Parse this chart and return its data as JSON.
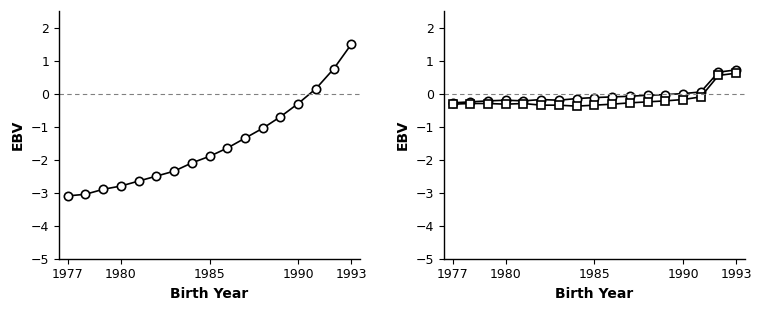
{
  "years": [
    1977,
    1978,
    1979,
    1980,
    1981,
    1982,
    1983,
    1984,
    1985,
    1986,
    1987,
    1988,
    1989,
    1990,
    1991,
    1992,
    1993
  ],
  "stature": [
    -3.1,
    -3.05,
    -2.9,
    -2.8,
    -2.65,
    -2.5,
    -2.35,
    -2.1,
    -1.9,
    -1.65,
    -1.35,
    -1.05,
    -0.7,
    -0.3,
    0.15,
    0.75,
    1.5
  ],
  "dairy_form": [
    -0.28,
    -0.25,
    -0.22,
    -0.2,
    -0.22,
    -0.18,
    -0.2,
    -0.15,
    -0.12,
    -0.1,
    -0.08,
    -0.05,
    -0.03,
    0.0,
    0.05,
    0.65,
    0.72
  ],
  "body_depth": [
    -0.32,
    -0.3,
    -0.3,
    -0.32,
    -0.3,
    -0.35,
    -0.35,
    -0.38,
    -0.35,
    -0.32,
    -0.28,
    -0.25,
    -0.22,
    -0.18,
    -0.1,
    0.55,
    0.62
  ],
  "ylim": [
    -5,
    2.5
  ],
  "yticks": [
    -5,
    -4,
    -3,
    -2,
    -1,
    0,
    1,
    2
  ],
  "xlim": [
    1976.5,
    1993.5
  ],
  "xticks": [
    1977,
    1980,
    1985,
    1990,
    1993
  ],
  "xlabel": "Birth Year",
  "ylabel": "EBV",
  "hline_y": 0,
  "line_color": "#000000",
  "bg_color": "#ffffff"
}
